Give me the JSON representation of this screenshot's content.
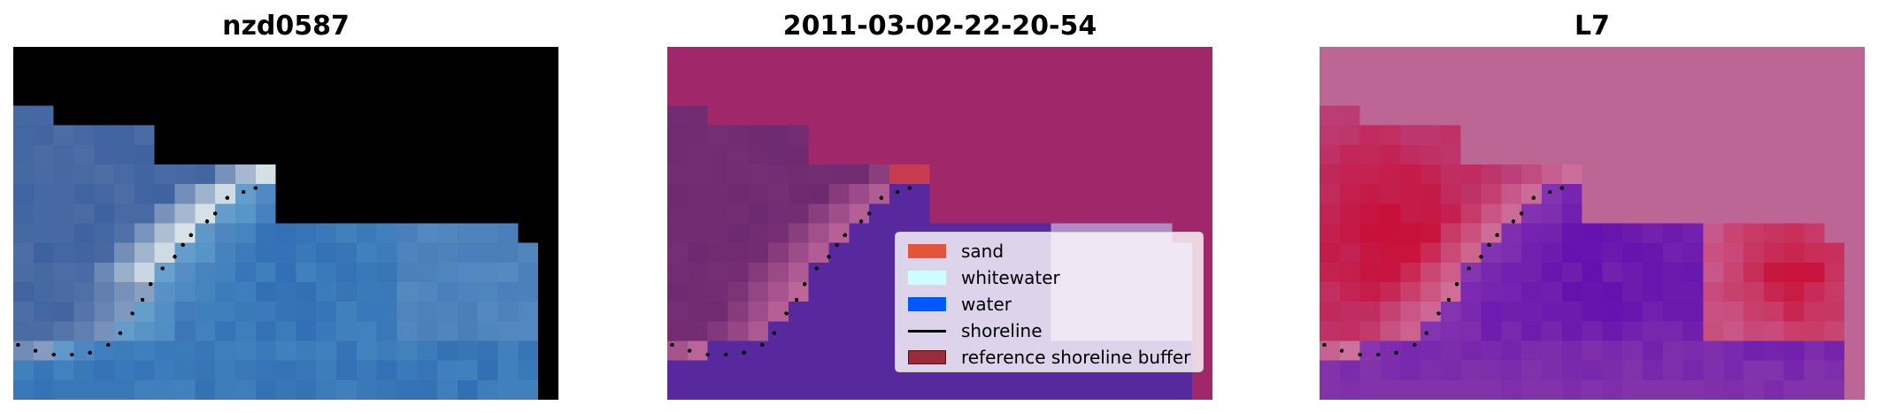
{
  "panels": [
    {
      "title": "nzd0587",
      "kind": "rgb"
    },
    {
      "title": "2011-03-02-22-20-54",
      "kind": "classified"
    },
    {
      "title": "L7",
      "kind": "index"
    }
  ],
  "legend": {
    "items": [
      {
        "label": "sand",
        "color": "#e4543a",
        "type": "patch"
      },
      {
        "label": "whitewater",
        "color": "#ccffff",
        "type": "patch"
      },
      {
        "label": "water",
        "color": "#0059ff",
        "type": "patch"
      },
      {
        "label": "shoreline",
        "color": "#000000",
        "type": "line"
      },
      {
        "label": "reference shoreline buffer",
        "color": "#9b2a3a",
        "type": "patch"
      }
    ]
  }
}
